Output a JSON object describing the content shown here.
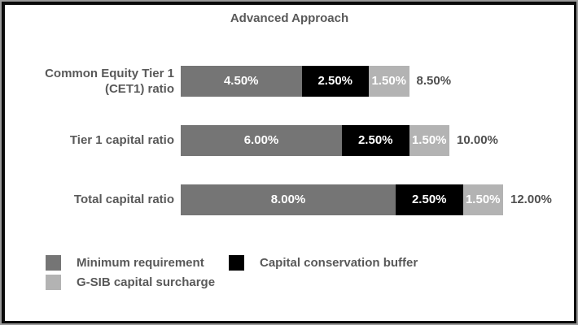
{
  "title": "Advanced Approach",
  "chart_data": {
    "type": "bar",
    "orientation": "horizontal",
    "stacked": true,
    "title": "Advanced Approach",
    "categories": [
      [
        "Common Equity Tier 1",
        "(CET1) ratio"
      ],
      [
        "Tier 1 capital ratio"
      ],
      [
        "Total capital ratio"
      ]
    ],
    "series": [
      {
        "name": "Minimum requirement",
        "color": "#757575",
        "values": [
          4.5,
          6.0,
          8.0
        ],
        "labels": [
          "4.50%",
          "6.00%",
          "8.00%"
        ]
      },
      {
        "name": "Capital conservation buffer",
        "color": "#000000",
        "values": [
          2.5,
          2.5,
          2.5
        ],
        "labels": [
          "2.50%",
          "2.50%",
          "2.50%"
        ]
      },
      {
        "name": "G-SIB capital surcharge",
        "color": "#b3b3b3",
        "values": [
          1.5,
          1.5,
          1.5
        ],
        "labels": [
          "1.50%",
          "1.50%",
          "1.50%"
        ]
      }
    ],
    "totals": [
      "8.50%",
      "10.00%",
      "12.00%"
    ],
    "total_values": [
      8.5,
      10.0,
      12.0
    ],
    "value_label_color": "#ffffff",
    "category_label_color": "#595959",
    "legend_position": "bottom",
    "legend_layout": "two-column",
    "grid": false,
    "axes_visible": false
  }
}
